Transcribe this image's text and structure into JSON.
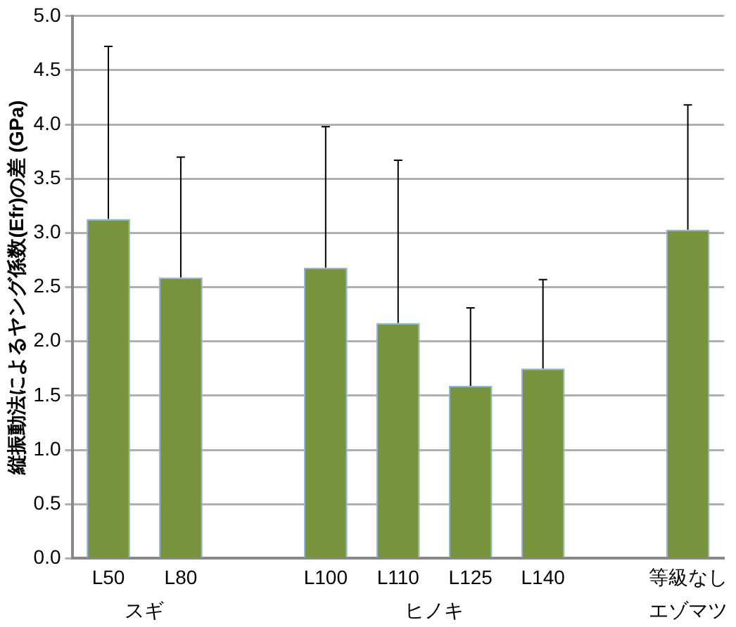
{
  "chart_data": {
    "type": "bar",
    "ylabel": "縦振動法によるヤング係数(Efr)の差 (GPa)",
    "categories": [
      "L50",
      "L80",
      null,
      "L100",
      "L110",
      "L125",
      "L140",
      null,
      "等級なし"
    ],
    "values": [
      3.13,
      2.59,
      null,
      2.68,
      2.17,
      1.59,
      1.75,
      null,
      3.03
    ],
    "errors": [
      [
        3.13,
        4.72
      ],
      [
        2.59,
        3.7
      ],
      null,
      [
        2.68,
        3.98
      ],
      [
        2.17,
        3.67
      ],
      [
        1.59,
        2.31
      ],
      [
        1.75,
        2.57
      ],
      null,
      [
        3.03,
        4.18
      ]
    ],
    "color": "#77933c",
    "annotations": [
      "スギ",
      "ヒノキ",
      "エゾマツ"
    ],
    "ylim": [
      0,
      5
    ],
    "yticks": [
      {
        "value": 0,
        "label": "0.0"
      },
      {
        "value": 0.5,
        "label": "0.5"
      },
      {
        "value": 1,
        "label": "1.0"
      },
      {
        "value": 1.5,
        "label": "1.5"
      },
      {
        "value": 2,
        "label": "2.0"
      },
      {
        "value": 2.5,
        "label": "2.5"
      },
      {
        "value": 3,
        "label": "3.0"
      },
      {
        "value": 3.5,
        "label": "3.5"
      },
      {
        "value": 4,
        "label": "4.0"
      },
      {
        "value": 4.5,
        "label": "4.5"
      },
      {
        "value": 5,
        "label": "5.0"
      }
    ],
    "grid": "y",
    "legend": false
  }
}
